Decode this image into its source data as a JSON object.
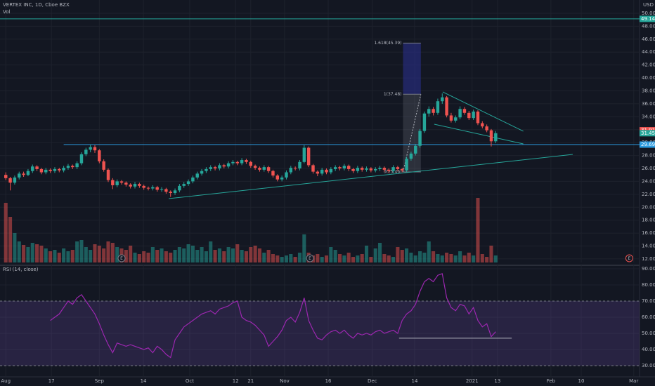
{
  "chart_data": {
    "type": "candlestick",
    "title": "VERTEX INC, 1D, Cboe BZX",
    "volume_label": "Vol",
    "currency": "USD",
    "up_color": "#26a69a",
    "down_color": "#ef5350",
    "grid": true,
    "xlim": [
      -1.3,
      142.3
    ],
    "xticks": [
      {
        "value": 0,
        "label": "Aug"
      },
      {
        "value": 10.25,
        "label": "17"
      },
      {
        "value": 21,
        "label": "Sep"
      },
      {
        "value": 30.9,
        "label": "14"
      },
      {
        "value": 41.3,
        "label": "Oct"
      },
      {
        "value": 51.6,
        "label": "12"
      },
      {
        "value": 55,
        "label": "21"
      },
      {
        "value": 62.6,
        "label": "Nov"
      },
      {
        "value": 72.4,
        "label": "16"
      },
      {
        "value": 82.3,
        "label": "Dec"
      },
      {
        "value": 91.8,
        "label": "14"
      },
      {
        "value": 104.7,
        "label": "2021"
      },
      {
        "value": 110.4,
        "label": "13"
      },
      {
        "value": 122.4,
        "label": "Feb"
      },
      {
        "value": 129.2,
        "label": "10"
      },
      {
        "value": 141,
        "label": "Mar"
      }
    ],
    "ylim": [
      11.45,
      52.06
    ],
    "yticks": [
      {
        "value": 12,
        "label": "12.00"
      },
      {
        "value": 14,
        "label": "14.00"
      },
      {
        "value": 16,
        "label": "16.00"
      },
      {
        "value": 18,
        "label": "18.00"
      },
      {
        "value": 20,
        "label": "20.00"
      },
      {
        "value": 22,
        "label": "22.00"
      },
      {
        "value": 24,
        "label": "24.00"
      },
      {
        "value": 26,
        "label": "26.00"
      },
      {
        "value": 28,
        "label": "28.00"
      },
      {
        "value": 30,
        "label": "30.00"
      },
      {
        "value": 32,
        "label": "32.00"
      },
      {
        "value": 34,
        "label": "34.00"
      },
      {
        "value": 36,
        "label": "36.00"
      },
      {
        "value": 38,
        "label": "38.00"
      },
      {
        "value": 40,
        "label": "40.00"
      },
      {
        "value": 42,
        "label": "42.00"
      },
      {
        "value": 44,
        "label": "44.00"
      },
      {
        "value": 46,
        "label": "46.00"
      },
      {
        "value": 48,
        "label": "48.00"
      },
      {
        "value": 50,
        "label": "50.00"
      }
    ],
    "candles": [
      [
        25.0,
        25.4,
        24.2,
        24.5
      ],
      [
        24.5,
        24.7,
        22.6,
        23.8
      ],
      [
        23.8,
        24.9,
        23.5,
        24.6
      ],
      [
        24.6,
        25.5,
        24.3,
        25.2
      ],
      [
        25.2,
        25.5,
        24.7,
        25.0
      ],
      [
        25.0,
        25.9,
        24.8,
        25.6
      ],
      [
        25.6,
        26.6,
        25.3,
        26.3
      ],
      [
        26.3,
        26.5,
        25.6,
        25.9
      ],
      [
        25.9,
        26.1,
        25.1,
        25.4
      ],
      [
        25.4,
        26.1,
        25.1,
        25.8
      ],
      [
        25.8,
        26.0,
        25.3,
        25.6
      ],
      [
        25.6,
        26.2,
        25.3,
        25.9
      ],
      [
        25.9,
        26.1,
        25.4,
        25.7
      ],
      [
        25.7,
        26.4,
        25.4,
        26.1
      ],
      [
        26.1,
        26.7,
        25.8,
        26.4
      ],
      [
        26.4,
        26.6,
        25.9,
        26.2
      ],
      [
        26.2,
        27.1,
        25.9,
        26.8
      ],
      [
        26.8,
        28.5,
        26.5,
        28.2
      ],
      [
        28.2,
        29.2,
        27.9,
        28.9
      ],
      [
        28.9,
        29.7,
        28.5,
        29.3
      ],
      [
        29.3,
        29.6,
        28.4,
        28.8
      ],
      [
        28.8,
        29.0,
        26.8,
        27.1
      ],
      [
        27.1,
        27.4,
        25.5,
        25.8
      ],
      [
        25.8,
        26.0,
        23.9,
        24.2
      ],
      [
        24.2,
        24.5,
        22.8,
        23.4
      ],
      [
        23.4,
        24.3,
        23.1,
        24.0
      ],
      [
        24.0,
        24.2,
        23.5,
        23.8
      ],
      [
        23.8,
        24.0,
        23.2,
        23.5
      ],
      [
        23.5,
        23.7,
        22.9,
        23.2
      ],
      [
        23.2,
        23.9,
        22.9,
        23.6
      ],
      [
        23.6,
        23.8,
        23.0,
        23.3
      ],
      [
        23.3,
        23.5,
        22.7,
        23.0
      ],
      [
        23.0,
        23.2,
        22.6,
        22.9
      ],
      [
        22.9,
        23.4,
        22.6,
        23.1
      ],
      [
        23.1,
        23.3,
        22.4,
        22.7
      ],
      [
        22.7,
        23.1,
        22.4,
        22.8
      ],
      [
        22.8,
        23.0,
        22.1,
        22.4
      ],
      [
        22.4,
        22.6,
        21.6,
        22.2
      ],
      [
        22.2,
        22.9,
        21.9,
        22.6
      ],
      [
        22.6,
        23.6,
        22.3,
        23.3
      ],
      [
        23.3,
        23.9,
        23.0,
        23.6
      ],
      [
        23.6,
        24.3,
        23.3,
        24.0
      ],
      [
        24.0,
        24.9,
        23.7,
        24.6
      ],
      [
        24.6,
        25.5,
        24.3,
        25.2
      ],
      [
        25.2,
        25.9,
        24.9,
        25.6
      ],
      [
        25.6,
        26.2,
        25.3,
        25.9
      ],
      [
        25.9,
        26.5,
        25.6,
        26.2
      ],
      [
        26.2,
        26.4,
        25.7,
        26.0
      ],
      [
        26.0,
        26.8,
        25.7,
        26.5
      ],
      [
        26.5,
        26.7,
        26.0,
        26.3
      ],
      [
        26.3,
        27.1,
        26.0,
        26.8
      ],
      [
        26.8,
        27.3,
        26.5,
        27.0
      ],
      [
        27.0,
        27.2,
        26.5,
        26.8
      ],
      [
        26.8,
        27.6,
        26.5,
        27.3
      ],
      [
        27.3,
        27.5,
        26.7,
        27.0
      ],
      [
        27.0,
        27.2,
        26.1,
        26.4
      ],
      [
        26.4,
        26.6,
        25.8,
        26.1
      ],
      [
        26.1,
        26.3,
        25.5,
        25.8
      ],
      [
        25.8,
        26.5,
        25.5,
        26.2
      ],
      [
        26.2,
        26.4,
        25.3,
        25.6
      ],
      [
        25.6,
        25.8,
        24.6,
        24.9
      ],
      [
        24.9,
        25.1,
        24.0,
        24.3
      ],
      [
        24.3,
        24.9,
        24.0,
        24.6
      ],
      [
        24.6,
        25.7,
        24.3,
        25.4
      ],
      [
        25.4,
        26.4,
        25.1,
        26.1
      ],
      [
        26.1,
        26.3,
        25.7,
        26.0
      ],
      [
        26.0,
        27.3,
        25.7,
        27.0
      ],
      [
        27.0,
        29.6,
        26.8,
        29.2
      ],
      [
        29.2,
        29.4,
        26.2,
        26.5
      ],
      [
        26.5,
        26.7,
        25.2,
        25.5
      ],
      [
        25.5,
        25.7,
        24.8,
        25.2
      ],
      [
        25.2,
        26.1,
        24.9,
        25.8
      ],
      [
        25.8,
        26.0,
        25.1,
        25.4
      ],
      [
        25.4,
        26.2,
        25.1,
        25.9
      ],
      [
        25.9,
        26.5,
        25.6,
        26.2
      ],
      [
        26.2,
        26.4,
        25.7,
        26.0
      ],
      [
        26.0,
        26.7,
        25.7,
        26.4
      ],
      [
        26.4,
        26.6,
        25.6,
        25.9
      ],
      [
        25.9,
        26.1,
        25.3,
        25.6
      ],
      [
        25.6,
        26.4,
        25.3,
        26.1
      ],
      [
        26.1,
        26.3,
        25.5,
        25.8
      ],
      [
        25.8,
        26.3,
        25.5,
        26.0
      ],
      [
        26.0,
        26.2,
        25.4,
        25.7
      ],
      [
        25.7,
        26.2,
        25.4,
        25.9
      ],
      [
        25.9,
        26.4,
        25.6,
        26.1
      ],
      [
        26.1,
        26.3,
        25.5,
        25.8
      ],
      [
        25.8,
        26.0,
        25.3,
        25.6
      ],
      [
        25.6,
        26.5,
        25.3,
        26.2
      ],
      [
        26.2,
        26.4,
        25.6,
        25.9
      ],
      [
        25.9,
        26.1,
        25.4,
        25.7
      ],
      [
        25.7,
        27.8,
        25.5,
        27.5
      ],
      [
        27.5,
        28.6,
        27.2,
        28.3
      ],
      [
        28.3,
        29.8,
        28.0,
        29.5
      ],
      [
        29.5,
        32.1,
        29.2,
        31.8
      ],
      [
        31.8,
        34.8,
        31.5,
        34.5
      ],
      [
        34.5,
        35.6,
        34.0,
        35.2
      ],
      [
        35.2,
        35.5,
        34.2,
        34.6
      ],
      [
        34.6,
        36.8,
        34.3,
        36.4
      ],
      [
        36.4,
        37.6,
        36.0,
        37.0
      ],
      [
        37.0,
        37.2,
        33.9,
        34.2
      ],
      [
        34.2,
        34.6,
        33.1,
        33.4
      ],
      [
        33.4,
        34.2,
        33.1,
        33.9
      ],
      [
        33.9,
        35.6,
        33.6,
        35.2
      ],
      [
        35.2,
        35.5,
        34.3,
        34.6
      ],
      [
        34.6,
        34.9,
        33.5,
        33.8
      ],
      [
        33.8,
        35.1,
        33.5,
        34.8
      ],
      [
        34.8,
        35.0,
        32.7,
        33.0
      ],
      [
        33.0,
        33.3,
        32.2,
        32.5
      ],
      [
        32.5,
        32.8,
        31.6,
        31.9
      ],
      [
        31.9,
        32.1,
        29.4,
        30.2
      ],
      [
        30.2,
        31.8,
        29.9,
        31.45
      ]
    ],
    "volume_ylim": [
      0,
      100
    ],
    "volume": [
      85,
      65,
      42,
      30,
      25,
      22,
      28,
      26,
      24,
      20,
      16,
      18,
      14,
      20,
      16,
      18,
      30,
      32,
      22,
      18,
      26,
      24,
      20,
      30,
      28,
      22,
      20,
      18,
      24,
      14,
      12,
      16,
      14,
      22,
      18,
      20,
      16,
      14,
      18,
      22,
      20,
      26,
      24,
      18,
      22,
      16,
      30,
      18,
      20,
      16,
      22,
      20,
      26,
      18,
      16,
      22,
      24,
      20,
      14,
      18,
      12,
      10,
      8,
      10,
      12,
      8,
      14,
      40,
      14,
      10,
      12,
      8,
      10,
      22,
      18,
      12,
      10,
      14,
      8,
      10,
      12,
      24,
      8,
      20,
      28,
      12,
      10,
      8,
      22,
      18,
      20,
      14,
      10,
      16,
      14,
      30,
      16,
      12,
      10,
      14,
      12,
      10,
      16,
      10,
      14,
      10,
      92,
      12,
      8,
      24,
      10
    ],
    "hlines": [
      {
        "value": 49.14,
        "from": -1.3,
        "color": "#26a69a"
      },
      {
        "value": 29.69,
        "from": 13,
        "color": "#2b9be0"
      }
    ],
    "price_labels": [
      {
        "value": 49.14,
        "label": "49.14",
        "color": "#26a69a"
      },
      {
        "value": 31.91,
        "label": "31.91",
        "color": "#ef5350"
      },
      {
        "value": 31.45,
        "label": "31.45",
        "color": "#26a69a"
      },
      {
        "value": 29.69,
        "label": "29.69",
        "color": "#2b9be0"
      }
    ],
    "trendlines": [
      {
        "x": [
          36.6,
          127.3
        ],
        "y": [
          21.33,
          28.17
        ]
      },
      {
        "x": [
          98.1,
          116.2
        ],
        "y": [
          37.84,
          31.76
        ]
      },
      {
        "x": [
          96.2,
          116.2
        ],
        "y": [
          32.84,
          29.8
        ]
      }
    ],
    "fib": {
      "x": [
        89.2,
        93.2
      ],
      "levels": [
        {
          "value": 25.46,
          "label": "0(25.46)"
        },
        {
          "value": 37.48,
          "label": "1(37.48)"
        },
        {
          "value": 45.39,
          "label": "1.618(45.39)"
        }
      ]
    },
    "events": [
      {
        "x": 26,
        "label": "E"
      },
      {
        "x": 68.3,
        "label": "E"
      },
      {
        "x": 140,
        "label": "E"
      }
    ],
    "rsi": {
      "title": "RSI (14, close)",
      "color": "#9c27b0",
      "ylim": [
        23.04,
        92.17
      ],
      "yticks": [
        {
          "value": 30,
          "label": "30.00"
        },
        {
          "value": 40,
          "label": "40.00"
        },
        {
          "value": 50,
          "label": "50.00"
        },
        {
          "value": 60,
          "label": "60.00"
        },
        {
          "value": 70,
          "label": "70.00"
        },
        {
          "value": 80,
          "label": "80.00"
        },
        {
          "value": 90,
          "label": "90.00"
        }
      ],
      "bands": [
        30,
        70
      ],
      "hline": {
        "value": 47,
        "x": [
          88.3,
          113.6
        ]
      },
      "values": [
        null,
        null,
        null,
        null,
        null,
        null,
        null,
        null,
        null,
        null,
        58,
        60,
        62,
        66,
        70,
        68,
        72,
        74,
        70,
        66,
        62,
        56,
        49,
        43,
        38,
        44,
        43,
        42,
        43,
        42,
        41,
        40,
        41,
        38,
        42,
        40,
        37,
        35,
        46,
        50,
        54,
        56,
        58,
        60,
        62,
        63,
        64,
        62,
        65,
        66,
        67,
        69,
        70,
        60,
        58,
        57,
        55,
        52,
        49,
        42,
        45,
        48,
        52,
        58,
        60,
        57,
        63,
        72,
        58,
        52,
        47,
        46,
        49,
        51,
        52,
        50,
        52,
        49,
        47,
        50,
        49,
        50,
        49,
        51,
        52,
        50,
        51,
        52,
        50,
        58,
        62,
        64,
        68,
        76,
        82,
        84,
        82,
        86,
        87,
        72,
        66,
        64,
        68,
        67,
        62,
        66,
        58,
        54,
        56,
        48,
        51
      ]
    }
  }
}
